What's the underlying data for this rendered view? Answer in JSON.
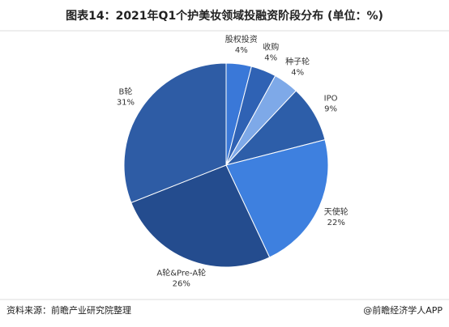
{
  "chart_data": {
    "type": "pie",
    "title": "图表14：2021年Q1个护美妆领域投融资阶段分布 (单位：%)",
    "categories": [
      "股权投资",
      "收购",
      "种子轮",
      "IPO",
      "天使轮",
      "A轮&Pre-A轮",
      "B轮"
    ],
    "values": [
      4,
      4,
      4,
      9,
      22,
      26,
      31
    ],
    "value_labels": [
      "4%",
      "4%",
      "4%",
      "9%",
      "22%",
      "26%",
      "31%"
    ],
    "colors": [
      "#3a78d8",
      "#2f62b4",
      "#7ea9e8",
      "#2d5ea9",
      "#3e80df",
      "#244c8e",
      "#2e5ca5"
    ]
  },
  "footer": {
    "source": "资料来源：前瞻产业研究院整理",
    "brand": "@前瞻经济学人APP"
  }
}
